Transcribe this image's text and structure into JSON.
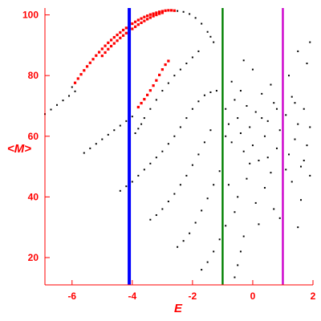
{
  "chart_data": {
    "type": "scatter",
    "title": "",
    "xlabel": "E",
    "ylabel": "<M>",
    "xlim": [
      -6.9,
      2.0
    ],
    "ylim": [
      11,
      102
    ],
    "xticks": [
      -6,
      -4,
      -2,
      0,
      2
    ],
    "yticks": [
      20,
      40,
      60,
      80,
      100
    ],
    "grid": false,
    "axis_color": "#ff0000",
    "vertical_lines": [
      {
        "x": -4.1,
        "color": "#0000ff",
        "name": ""
      },
      {
        "x": -1.0,
        "color": "#008000",
        "name": ""
      },
      {
        "x": 1.0,
        "color": "#cc00cc",
        "name": ""
      }
    ],
    "series": [
      {
        "name": "",
        "color": "#ff0000",
        "style": "dense",
        "points": [
          [
            -5.9,
            77.6
          ],
          [
            -5.8,
            79.0
          ],
          [
            -5.7,
            80.4
          ],
          [
            -5.6,
            81.7
          ],
          [
            -5.5,
            83.0
          ],
          [
            -5.4,
            84.2
          ],
          [
            -5.3,
            85.4
          ],
          [
            -5.2,
            86.6
          ],
          [
            -5.1,
            87.7
          ],
          [
            -5.0,
            88.8
          ],
          [
            -4.9,
            89.8
          ],
          [
            -4.8,
            90.8
          ],
          [
            -4.7,
            91.7
          ],
          [
            -4.6,
            92.6
          ],
          [
            -4.5,
            93.4
          ],
          [
            -4.4,
            94.2
          ],
          [
            -4.3,
            95.0
          ],
          [
            -4.2,
            95.7
          ],
          [
            -4.1,
            96.4
          ],
          [
            -4.0,
            97.1
          ],
          [
            -3.9,
            97.7
          ],
          [
            -3.8,
            98.3
          ],
          [
            -3.7,
            98.8
          ],
          [
            -3.6,
            99.3
          ],
          [
            -3.5,
            99.7
          ],
          [
            -3.4,
            100.1
          ],
          [
            -3.3,
            100.4
          ],
          [
            -3.2,
            100.7
          ],
          [
            -3.1,
            101.0
          ],
          [
            -3.0,
            101.2
          ],
          [
            -2.9,
            101.4
          ],
          [
            -2.8,
            101.5
          ],
          [
            -2.7,
            101.5
          ],
          [
            -2.6,
            101.4
          ],
          [
            -5.0,
            86.5
          ],
          [
            -4.9,
            87.6
          ],
          [
            -4.8,
            88.7
          ],
          [
            -4.7,
            89.7
          ],
          [
            -4.6,
            90.6
          ],
          [
            -4.5,
            91.5
          ],
          [
            -4.4,
            92.4
          ],
          [
            -4.3,
            93.2
          ],
          [
            -4.2,
            94.0
          ],
          [
            -4.0,
            95.4
          ],
          [
            -3.9,
            96.1
          ],
          [
            -3.8,
            96.8
          ],
          [
            -3.7,
            97.4
          ],
          [
            -3.6,
            98.0
          ],
          [
            -3.5,
            98.6
          ],
          [
            -3.4,
            99.1
          ],
          [
            -3.3,
            99.6
          ],
          [
            -3.2,
            100.0
          ],
          [
            -3.1,
            100.4
          ],
          [
            -3.0,
            100.7
          ],
          [
            -3.8,
            69.6
          ],
          [
            -3.7,
            70.9
          ],
          [
            -3.6,
            72.2
          ],
          [
            -3.5,
            73.6
          ],
          [
            -3.4,
            75.1
          ],
          [
            -3.3,
            76.7
          ],
          [
            -3.2,
            78.4
          ],
          [
            -3.1,
            80.2
          ],
          [
            -3.0,
            82.0
          ],
          [
            -2.9,
            83.6
          ],
          [
            -2.8,
            84.8
          ]
        ]
      },
      {
        "name": "",
        "color": "#000000",
        "style": "sparse",
        "points": [
          [
            -6.9,
            67.3
          ],
          [
            -6.7,
            68.8
          ],
          [
            -6.5,
            70.3
          ],
          [
            -6.3,
            71.8
          ],
          [
            -6.1,
            73.3
          ],
          [
            -5.9,
            74.8
          ],
          [
            -6.0,
            76.2
          ],
          [
            -2.5,
            101.3
          ],
          [
            -2.3,
            101.0
          ],
          [
            -2.1,
            100.3
          ],
          [
            -1.9,
            99.0
          ],
          [
            -1.7,
            97.1
          ],
          [
            -1.5,
            94.4
          ],
          [
            -1.4,
            92.8
          ],
          [
            -1.3,
            91.0
          ],
          [
            -1.8,
            88.0
          ],
          [
            -2.0,
            86.0
          ],
          [
            -2.2,
            84.0
          ],
          [
            -2.4,
            82.0
          ],
          [
            -2.6,
            80.0
          ],
          [
            -2.8,
            77.5
          ],
          [
            -3.0,
            75.0
          ],
          [
            -3.2,
            72.0
          ],
          [
            -3.4,
            69.0
          ],
          [
            -3.6,
            66.0
          ],
          [
            -3.7,
            64.0
          ],
          [
            -3.8,
            62.5
          ],
          [
            -3.9,
            61.0
          ],
          [
            -5.6,
            54.5
          ],
          [
            -5.4,
            56.0
          ],
          [
            -5.2,
            57.5
          ],
          [
            -5.0,
            59.0
          ],
          [
            -4.8,
            60.5
          ],
          [
            -4.6,
            62.0
          ],
          [
            -4.4,
            63.5
          ],
          [
            -4.2,
            65.0
          ],
          [
            -4.0,
            66.5
          ],
          [
            -4.4,
            42.0
          ],
          [
            -4.2,
            43.5
          ],
          [
            -4.0,
            45.0
          ],
          [
            -3.8,
            47.0
          ],
          [
            -3.6,
            49.0
          ],
          [
            -3.4,
            51.0
          ],
          [
            -3.2,
            53.0
          ],
          [
            -3.0,
            55.0
          ],
          [
            -2.8,
            57.5
          ],
          [
            -2.6,
            60.0
          ],
          [
            -2.4,
            63.0
          ],
          [
            -2.2,
            66.0
          ],
          [
            -2.0,
            69.0
          ],
          [
            -1.8,
            71.5
          ],
          [
            -1.6,
            73.5
          ],
          [
            -1.4,
            74.5
          ],
          [
            -1.2,
            75.0
          ],
          [
            -3.4,
            32.5
          ],
          [
            -3.2,
            34.0
          ],
          [
            -3.0,
            36.0
          ],
          [
            -2.8,
            38.5
          ],
          [
            -2.6,
            41.0
          ],
          [
            -2.4,
            44.0
          ],
          [
            -2.2,
            47.0
          ],
          [
            -2.0,
            50.5
          ],
          [
            -1.8,
            54.0
          ],
          [
            -1.6,
            58.0
          ],
          [
            -1.4,
            62.0
          ],
          [
            -2.5,
            23.5
          ],
          [
            -2.3,
            25.5
          ],
          [
            -2.1,
            28.0
          ],
          [
            -1.9,
            31.5
          ],
          [
            -1.7,
            35.5
          ],
          [
            -1.5,
            39.5
          ],
          [
            -1.3,
            44.0
          ],
          [
            -1.1,
            48.5
          ],
          [
            -1.7,
            16.0
          ],
          [
            -1.5,
            18.5
          ],
          [
            -1.3,
            22.0
          ],
          [
            -1.1,
            26.0
          ],
          [
            -0.9,
            30.5
          ],
          [
            -0.6,
            13.5
          ],
          [
            -0.5,
            17.5
          ],
          [
            -0.4,
            22.0
          ],
          [
            -0.3,
            27.0
          ],
          [
            -0.9,
            69.0
          ],
          [
            -0.8,
            64.0
          ],
          [
            -0.7,
            58.0
          ],
          [
            -0.6,
            72.0
          ],
          [
            -0.5,
            66.0
          ],
          [
            -0.4,
            61.0
          ],
          [
            -0.3,
            55.0
          ],
          [
            -0.2,
            70.0
          ],
          [
            -0.1,
            63.0
          ],
          [
            0.0,
            57.0
          ],
          [
            0.1,
            68.0
          ],
          [
            0.2,
            52.0
          ],
          [
            0.3,
            74.0
          ],
          [
            0.4,
            60.0
          ],
          [
            0.5,
            65.0
          ],
          [
            0.6,
            48.0
          ],
          [
            0.7,
            71.0
          ],
          [
            0.8,
            56.0
          ],
          [
            0.9,
            62.0
          ],
          [
            1.1,
            67.0
          ],
          [
            1.2,
            54.0
          ],
          [
            1.3,
            73.0
          ],
          [
            1.4,
            59.0
          ],
          [
            1.5,
            64.0
          ],
          [
            1.6,
            50.0
          ],
          [
            1.7,
            69.0
          ],
          [
            1.8,
            57.0
          ],
          [
            1.9,
            63.0
          ],
          [
            -0.8,
            44.0
          ],
          [
            -0.5,
            40.0
          ],
          [
            -0.2,
            46.0
          ],
          [
            0.1,
            38.0
          ],
          [
            0.4,
            43.0
          ],
          [
            0.7,
            36.0
          ],
          [
            1.0,
            41.0
          ],
          [
            1.3,
            45.0
          ],
          [
            1.6,
            39.0
          ],
          [
            1.9,
            47.0
          ],
          [
            -0.6,
            35.0
          ],
          [
            0.2,
            31.0
          ],
          [
            0.9,
            33.0
          ],
          [
            1.5,
            30.0
          ],
          [
            -0.7,
            78.0
          ],
          [
            0.0,
            82.0
          ],
          [
            0.6,
            77.0
          ],
          [
            1.2,
            80.0
          ],
          [
            1.8,
            84.0
          ],
          [
            -0.3,
            85.0
          ],
          [
            1.5,
            88.0
          ],
          [
            1.9,
            91.0
          ],
          [
            -0.1,
            51.0
          ],
          [
            0.5,
            53.0
          ],
          [
            1.1,
            49.0
          ],
          [
            1.7,
            52.0
          ],
          [
            0.3,
            66.0
          ],
          [
            -0.4,
            75.0
          ],
          [
            1.0,
            58.0
          ],
          [
            1.4,
            71.0
          ],
          [
            0.8,
            69.0
          ],
          [
            -0.9,
            60.0
          ]
        ]
      }
    ]
  }
}
